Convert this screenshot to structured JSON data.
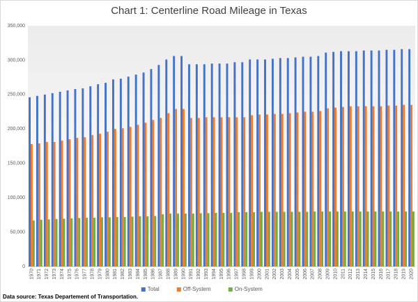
{
  "chart_data": {
    "type": "bar",
    "title": "Chart 1: Centerline Road Mileage in Texas",
    "categories": [
      "1970",
      "1971",
      "1972",
      "1973",
      "1974",
      "1975",
      "1976",
      "1977",
      "1978",
      "1979",
      "1980",
      "1981",
      "1982",
      "1983",
      "1984",
      "1985",
      "1986",
      "1987",
      "1988",
      "1989",
      "1990",
      "1991",
      "1992",
      "1993",
      "1994",
      "1995",
      "1996",
      "1997",
      "1998",
      "1999",
      "2000",
      "2001",
      "2002",
      "2003",
      "2004",
      "2005",
      "2006",
      "2007",
      "2008",
      "2009",
      "2010",
      "2011",
      "2012",
      "2013",
      "2014",
      "2015",
      "2016",
      "2017",
      "2018",
      "2019",
      "2020"
    ],
    "series": [
      {
        "name": "Total",
        "color": "#4472c4",
        "values": [
          246000,
          248000,
          250000,
          252000,
          254000,
          256000,
          258000,
          259000,
          262000,
          265000,
          267000,
          272000,
          273000,
          276000,
          279000,
          282000,
          287000,
          293000,
          301000,
          306000,
          306000,
          294000,
          294000,
          294000,
          295000,
          295000,
          295000,
          297000,
          297000,
          301000,
          301000,
          301000,
          302000,
          303000,
          303000,
          304000,
          305000,
          305000,
          306000,
          311000,
          312000,
          313000,
          313000,
          313000,
          314000,
          314000,
          314000,
          315000,
          315000,
          316000,
          316000
        ]
      },
      {
        "name": "Off-System",
        "color": "#ed7d31",
        "values": [
          178000,
          179000,
          181000,
          181000,
          183000,
          185000,
          187000,
          188000,
          191000,
          193000,
          196000,
          200000,
          201000,
          203000,
          206000,
          209000,
          213000,
          216000,
          223000,
          229000,
          229000,
          216000,
          216000,
          217000,
          217000,
          217000,
          217000,
          217000,
          217000,
          220000,
          221000,
          221000,
          222000,
          222000,
          223000,
          224000,
          225000,
          225000,
          226000,
          230000,
          231000,
          232000,
          233000,
          233000,
          233000,
          233000,
          233000,
          234000,
          234000,
          235000,
          235000
        ]
      },
      {
        "name": "On-System",
        "color": "#70ad47",
        "values": [
          67000,
          68000,
          68500,
          69000,
          69500,
          70000,
          70500,
          71000,
          71000,
          71500,
          71500,
          72000,
          72000,
          72500,
          73000,
          73000,
          73500,
          76000,
          77000,
          77000,
          77000,
          77000,
          77500,
          77500,
          78000,
          78000,
          78000,
          79000,
          79000,
          79000,
          79500,
          79500,
          79500,
          79500,
          79500,
          79500,
          79500,
          80000,
          80000,
          80000,
          80000,
          80000,
          80000,
          80000,
          80000,
          80000,
          80000,
          80000,
          80000,
          80000,
          80000
        ]
      }
    ],
    "ylim": [
      0,
      350000
    ],
    "yticks": [
      0,
      {
        "value": 50000,
        "label": "50,000"
      },
      {
        "value": 100000,
        "label": "100,000"
      },
      {
        "value": 150000,
        "label": "150,000"
      },
      {
        "value": 200000,
        "label": "200,000"
      },
      {
        "value": 250000,
        "label": "250,000"
      },
      {
        "value": 300000,
        "label": "300,000"
      },
      {
        "value": 350000,
        "label": "350,000"
      }
    ],
    "grid": false,
    "legend": "bottom",
    "source": "Data source: Texas Departement of Transportation."
  }
}
